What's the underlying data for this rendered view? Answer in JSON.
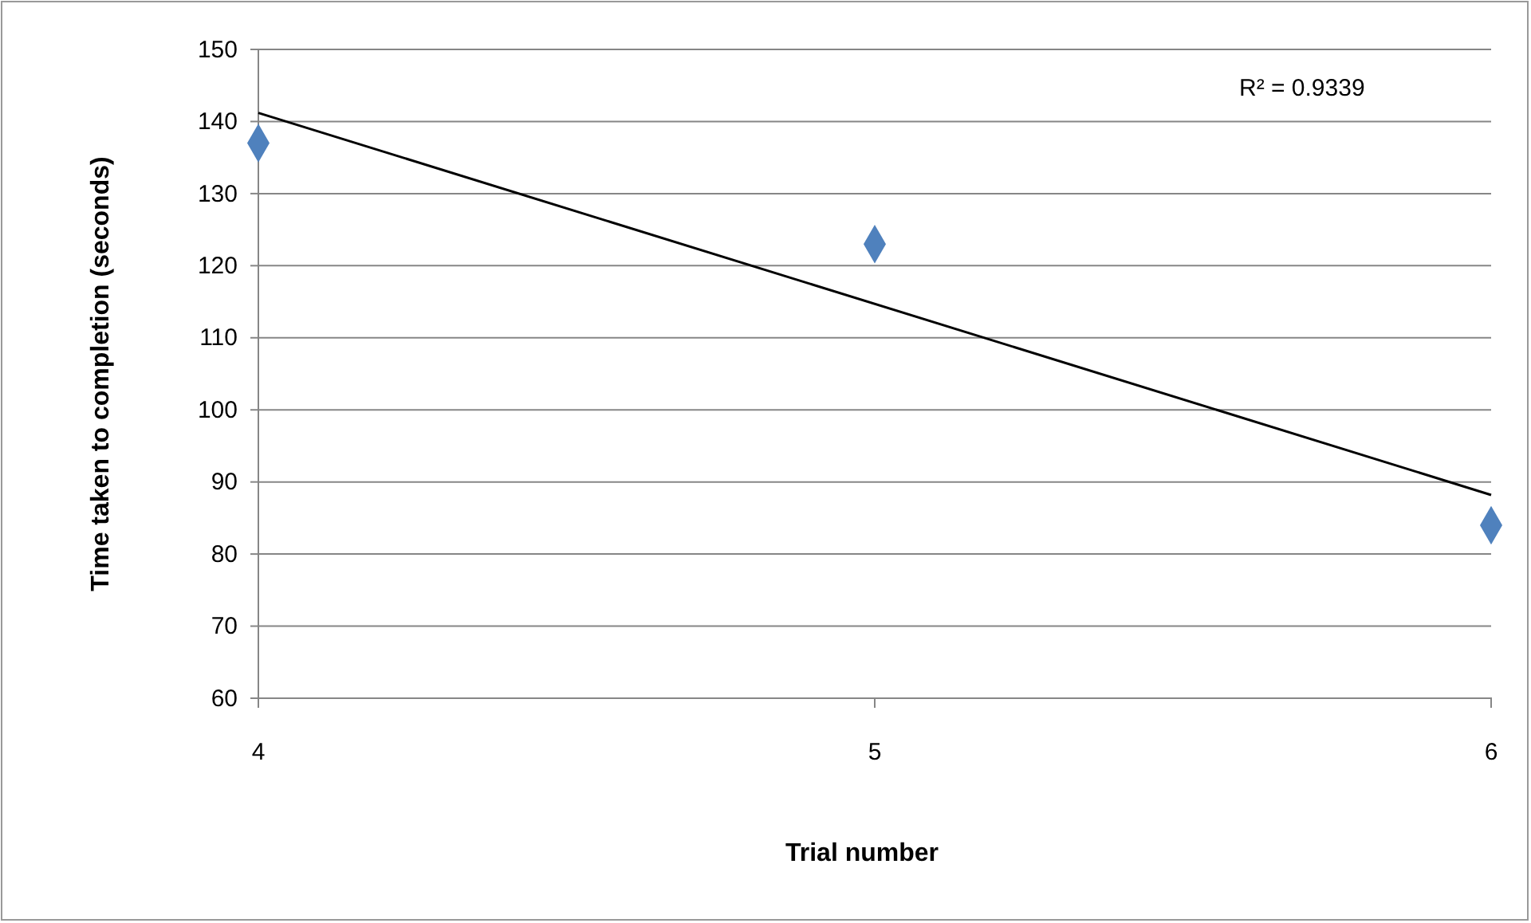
{
  "chart_data": {
    "type": "scatter",
    "xlabel": "Trial number",
    "ylabel": "Time taken to completion (seconds)",
    "x": [
      4,
      5,
      6
    ],
    "series": [
      {
        "color": "#4f81bd",
        "marker": "diamond",
        "values": [
          137,
          123,
          84
        ]
      },
      {
        "type": "line",
        "color": "#000000",
        "marker": "none",
        "x": [
          4,
          6
        ],
        "values": [
          141.2,
          88.2
        ]
      }
    ],
    "xlim": [
      4,
      6
    ],
    "xticks": [
      4,
      5,
      6
    ],
    "ylim": [
      60,
      150
    ],
    "yticks": [
      60,
      70,
      80,
      90,
      100,
      110,
      120,
      130,
      140,
      150
    ],
    "grid": "y",
    "annotations": [
      "R² = 0.9339"
    ]
  }
}
